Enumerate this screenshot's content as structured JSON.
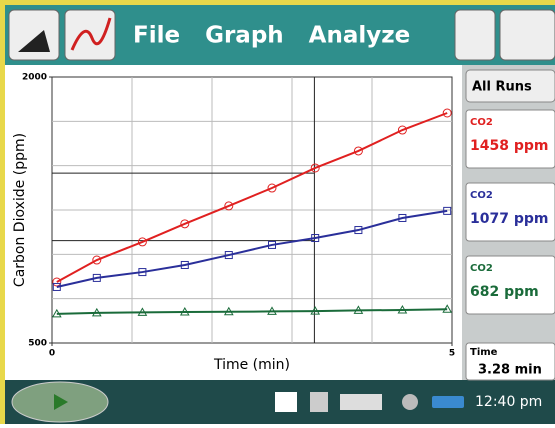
{
  "menu": [
    "File",
    "Graph",
    "Analyze"
  ],
  "sidebar": {
    "all_runs": "All Runs",
    "meters": [
      {
        "label": "CO2",
        "value": "1458 ppm",
        "color": "#e02020"
      },
      {
        "label": "CO2",
        "value": "1077 ppm",
        "color": "#2a2f9a"
      },
      {
        "label": "CO2",
        "value": "682 ppm",
        "color": "#1a6b3a"
      }
    ],
    "time": {
      "label": "Time",
      "value": "3.28 min"
    }
  },
  "status": {
    "clock": "12:40 pm"
  },
  "chart_data": {
    "type": "line",
    "x_label": "Time (min)",
    "y_label": "Carbon Dioxide (ppm)",
    "xlim": [
      0,
      5
    ],
    "ylim": [
      500,
      2000
    ],
    "xticks": [
      0,
      5
    ],
    "yticks": [
      500,
      2000
    ],
    "xgrid": [
      1,
      2,
      3,
      4
    ],
    "ygrid": [
      750,
      1000,
      1250,
      1500,
      1750
    ],
    "cursor": {
      "x": 3.28,
      "y": [
        1458,
        1077
      ]
    },
    "x": [
      0.06,
      0.56,
      1.13,
      1.66,
      2.21,
      2.75,
      3.29,
      3.83,
      4.38,
      4.94
    ],
    "series": [
      {
        "name": "CO2",
        "color": "#e02020",
        "marker": "circle",
        "values": [
          844,
          968,
          1070,
          1172,
          1273,
          1374,
          1487,
          1583,
          1701,
          1797
        ]
      },
      {
        "name": "CO2",
        "color": "#2a2f9a",
        "marker": "square",
        "values": [
          816,
          867,
          900,
          940,
          996,
          1053,
          1092,
          1137,
          1205,
          1245
        ]
      },
      {
        "name": "CO2",
        "color": "#1a6b3a",
        "marker": "triangle",
        "values": [
          664,
          670,
          673,
          675,
          676,
          678,
          680,
          684,
          686,
          690
        ]
      }
    ]
  }
}
